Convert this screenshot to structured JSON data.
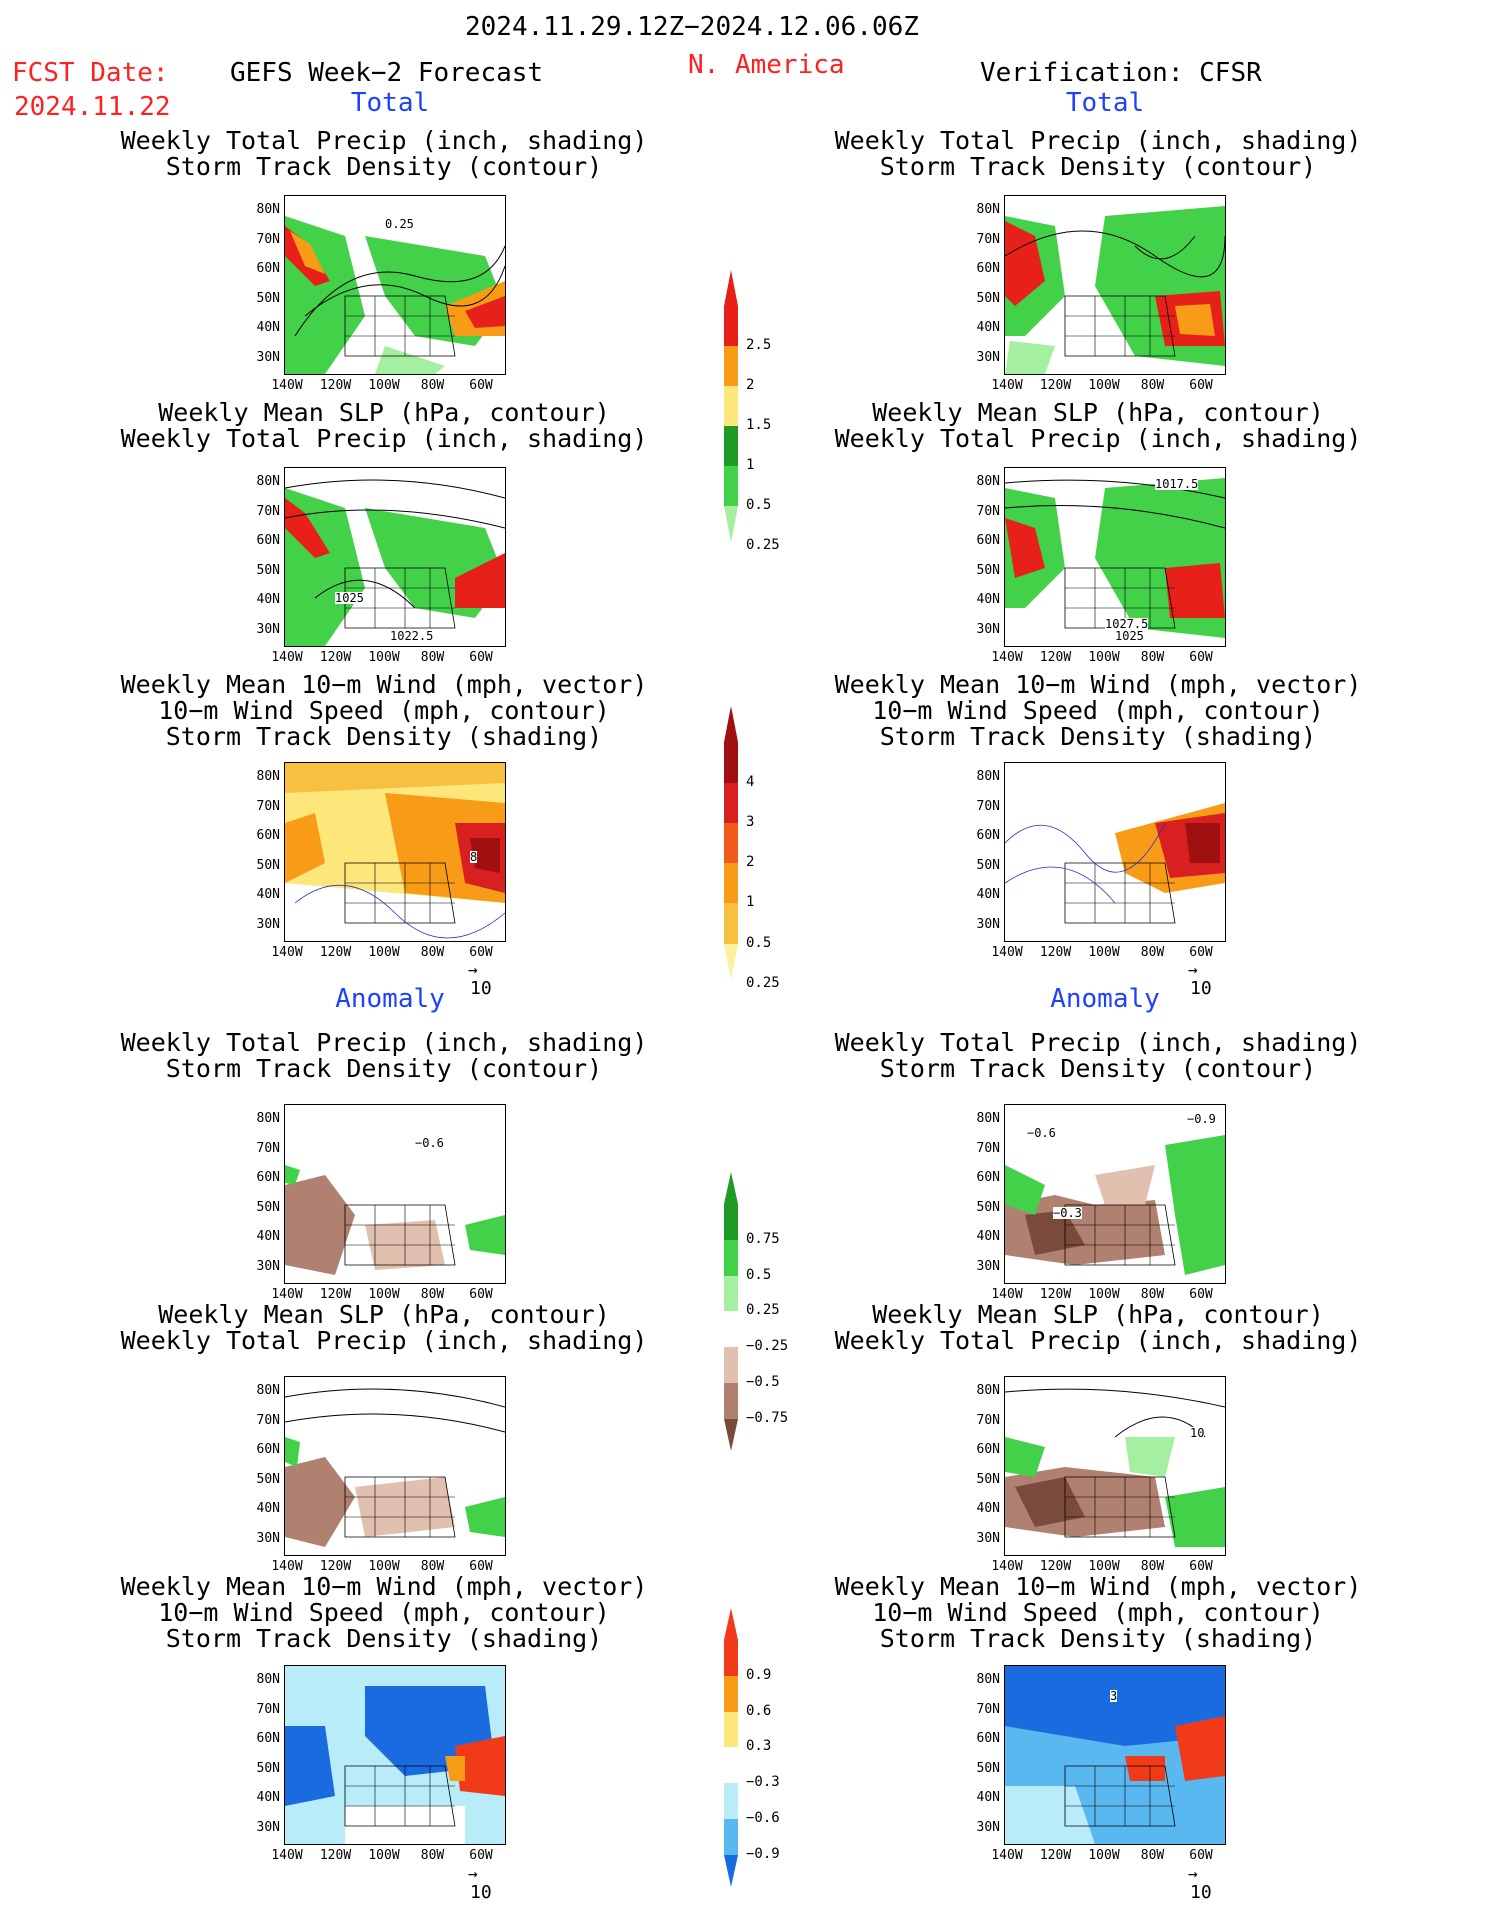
{
  "header": {
    "date_range": "2024.11.29.12Z−2024.12.06.06Z",
    "fcst_label": "FCST Date:",
    "fcst_date": "2024.11.22",
    "forecast_title": "GEFS Week−2 Forecast",
    "region": "N. America",
    "verification": "Verification: CFSR"
  },
  "sections": {
    "total": "Total",
    "anomaly": "Anomaly"
  },
  "titles": {
    "precip_track": [
      "Weekly Total Precip (inch, shading)",
      "Storm Track Density (contour)"
    ],
    "slp_precip": [
      "Weekly Mean SLP (hPa, contour)",
      "Weekly Total Precip (inch, shading)"
    ],
    "wind_track": [
      "Weekly Mean 10−m Wind (mph, vector)",
      "10−m Wind Speed (mph, contour)",
      "Storm Track Density (shading)"
    ]
  },
  "axes": {
    "lat": [
      "80N",
      "70N",
      "60N",
      "50N",
      "40N",
      "30N"
    ],
    "lon": [
      "140W",
      "120W",
      "100W",
      "80W",
      "60W"
    ]
  },
  "vector_ref": "10",
  "colorbars": {
    "precip_total": {
      "labels": [
        "2.5",
        "2",
        "1.5",
        "1",
        "0.5",
        "0.25"
      ],
      "colors": [
        "#e8201a",
        "#f89c18",
        "#fde67a",
        "#1f9a25",
        "#43d14a",
        "#a4f0a0"
      ]
    },
    "track_total": {
      "labels": [
        "4",
        "3",
        "2",
        "1",
        "0.5",
        "0.25"
      ],
      "colors": [
        "#a01010",
        "#d82020",
        "#f05a1a",
        "#f89c18",
        "#f8c040",
        "#fdf0a0"
      ]
    },
    "precip_anom": {
      "labels": [
        "0.75",
        "0.5",
        "0.25",
        "−0.25",
        "−0.5",
        "−0.75"
      ],
      "colors": [
        "#1f9a25",
        "#43d14a",
        "#a4f0a0",
        "#ffffff",
        "#e2c0b0",
        "#b08070",
        "#7a4a3a"
      ]
    },
    "track_anom": {
      "labels": [
        "0.9",
        "0.6",
        "0.3",
        "−0.3",
        "−0.6",
        "−0.9"
      ],
      "colors": [
        "#f03a1a",
        "#f89c18",
        "#fde67a",
        "#ffffff",
        "#b8ecf8",
        "#5ab8f0",
        "#1a6ae0"
      ]
    }
  },
  "map_annotations": {
    "precip_track_fcst": "0.25",
    "slp_fcst": [
      "1025",
      "1022.5"
    ],
    "slp_obs": [
      "1017.5",
      "1027.5",
      "1025"
    ],
    "wind_fcst_speed": "8",
    "precip_anom_fcst": "−0.6",
    "precip_anom_obs": [
      "−0.6",
      "−0.9",
      "−0.3"
    ],
    "slp_anom_obs": "10",
    "wind_anom_obs": "3"
  }
}
